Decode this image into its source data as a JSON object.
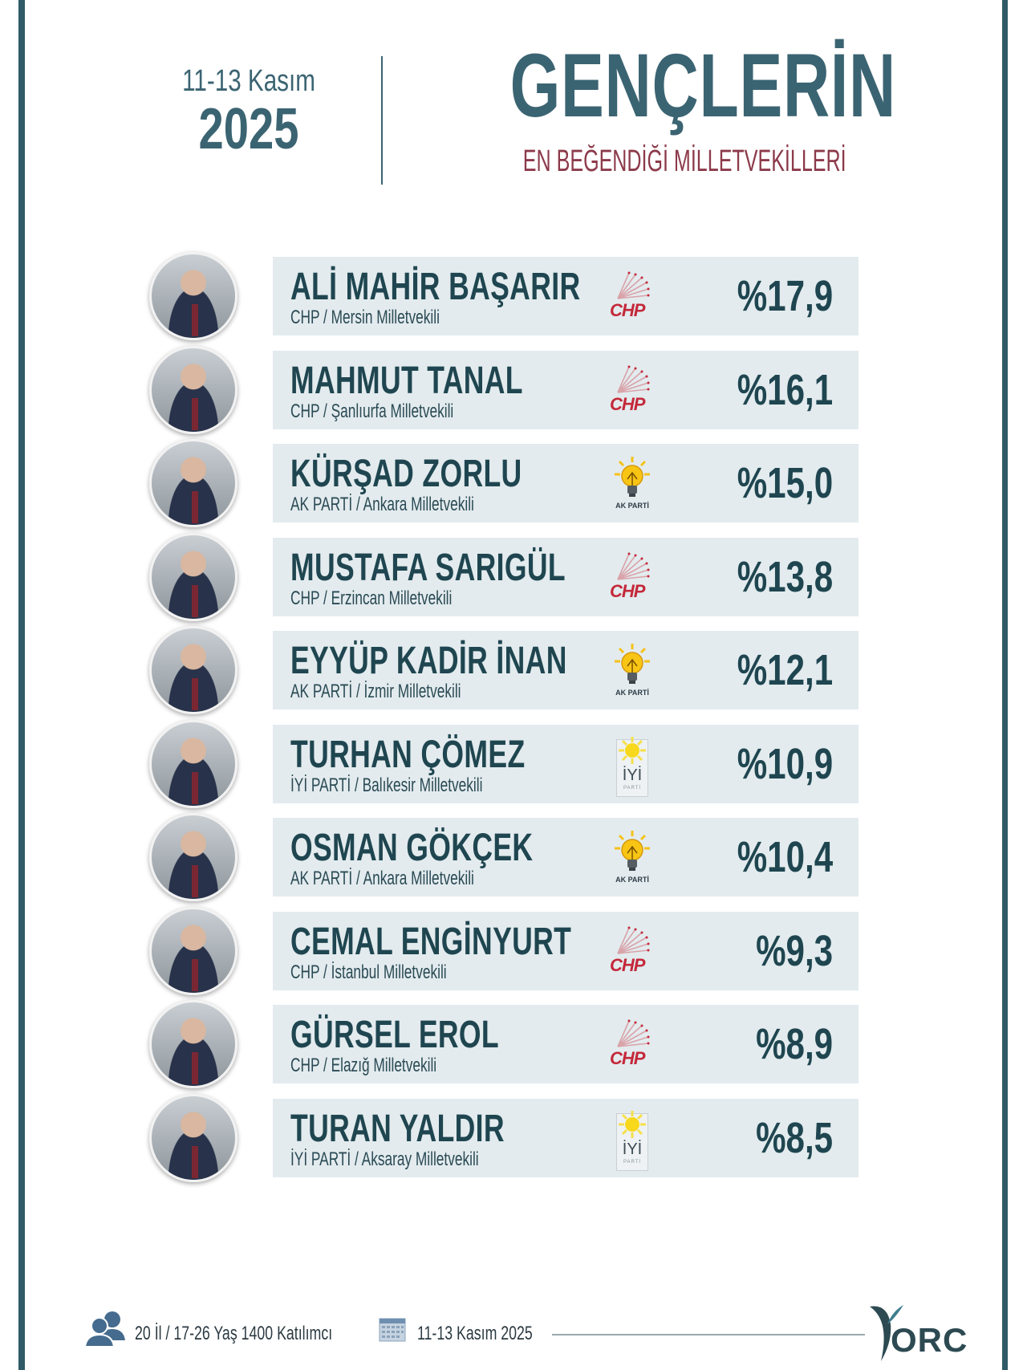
{
  "header": {
    "date_range": "11-13 Kasım",
    "year": "2025",
    "title": "GENÇLERİN",
    "subtitle": "EN BEĞENDİĞİ MİLLETVEKİLLERİ"
  },
  "colors": {
    "primary_teal": "#3b6472",
    "subtitle_maroon": "#8c3a4a",
    "bar_bg": "#e3ebee",
    "text_dark": "#1f4650",
    "chp_red": "#c4283a",
    "akp_yellow": "#f4c21a",
    "iyi_yellow": "#f8d81c"
  },
  "rows": [
    {
      "rank": 1,
      "name": "ALİ MAHİR BAŞARIR",
      "party": "CHP",
      "detail": "CHP / Mersin Milletvekili",
      "logo": "chp-logo-icon",
      "value_label": "%17,9",
      "value": 17.9
    },
    {
      "rank": 2,
      "name": "MAHMUT TANAL",
      "party": "CHP",
      "detail": "CHP / Şanlıurfa Milletvekili",
      "logo": "chp-logo-icon",
      "value_label": "%16,1",
      "value": 16.1
    },
    {
      "rank": 3,
      "name": "KÜRŞAD ZORLU",
      "party": "AK PARTİ",
      "detail": "AK PARTİ / Ankara Milletvekili",
      "logo": "akp-logo-icon",
      "value_label": "%15,0",
      "value": 15.0
    },
    {
      "rank": 4,
      "name": "MUSTAFA SARIGÜL",
      "party": "CHP",
      "detail": "CHP / Erzincan Milletvekili",
      "logo": "chp-logo-icon",
      "value_label": "%13,8",
      "value": 13.8
    },
    {
      "rank": 5,
      "name": "EYYÜP KADİR İNAN",
      "party": "AK PARTİ",
      "detail": "AK PARTİ / İzmir Milletvekili",
      "logo": "akp-logo-icon",
      "value_label": "%12,1",
      "value": 12.1
    },
    {
      "rank": 6,
      "name": "TURHAN ÇÖMEZ",
      "party": "İYİ PARTİ",
      "detail": "İYİ PARTİ / Balıkesir Milletvekili",
      "logo": "iyi-logo-icon",
      "value_label": "%10,9",
      "value": 10.9
    },
    {
      "rank": 7,
      "name": "OSMAN GÖKÇEK",
      "party": "AK PARTİ",
      "detail": "AK PARTİ / Ankara Milletvekili",
      "logo": "akp-logo-icon",
      "value_label": "%10,4",
      "value": 10.4
    },
    {
      "rank": 8,
      "name": "CEMAL ENGİNYURT",
      "party": "CHP",
      "detail": "CHP / İstanbul Milletvekili",
      "logo": "chp-logo-icon",
      "value_label": "%9,3",
      "value": 9.3
    },
    {
      "rank": 9,
      "name": "GÜRSEL EROL",
      "party": "CHP",
      "detail": "CHP / Elazığ Milletvekili",
      "logo": "chp-logo-icon",
      "value_label": "%8,9",
      "value": 8.9
    },
    {
      "rank": 10,
      "name": "TURAN YALDIR",
      "party": "İYİ PARTİ",
      "detail": "İYİ PARTİ / Aksaray Milletvekili",
      "logo": "iyi-logo-icon",
      "value_label": "%8,5",
      "value": 8.5
    }
  ],
  "logos": {
    "chp_text": "CHP",
    "akp_text": "AK PARTİ",
    "iyi_text": "İYİ",
    "iyi_sub": "PARTİ"
  },
  "footer": {
    "sample_text": "20 İl / 17-26 Yaş 1400 Katılımcı",
    "date_text": "11-13 Kasım 2025",
    "brand": "ORC"
  },
  "chart_data": {
    "type": "table",
    "title": "GENÇLERİN EN BEĞENDİĞİ MİLLETVEKİLLERİ",
    "subtitle": "11-13 Kasım 2025",
    "categories": [
      "ALİ MAHİR BAŞARIR",
      "MAHMUT TANAL",
      "KÜRŞAD ZORLU",
      "MUSTAFA SARIGÜL",
      "EYYÜP KADİR İNAN",
      "TURHAN ÇÖMEZ",
      "OSMAN GÖKÇEK",
      "CEMAL ENGİNYURT",
      "GÜRSEL EROL",
      "TURAN YALDIR"
    ],
    "parties": [
      "CHP",
      "CHP",
      "AK PARTİ",
      "CHP",
      "AK PARTİ",
      "İYİ PARTİ",
      "AK PARTİ",
      "CHP",
      "CHP",
      "İYİ PARTİ"
    ],
    "constituencies": [
      "Mersin",
      "Şanlıurfa",
      "Ankara",
      "Erzincan",
      "İzmir",
      "Balıkesir",
      "Ankara",
      "İstanbul",
      "Elazığ",
      "Aksaray"
    ],
    "values": [
      17.9,
      16.1,
      15.0,
      13.8,
      12.1,
      10.9,
      10.4,
      9.3,
      8.9,
      8.5
    ],
    "unit": "%",
    "note": "20 İl / 17-26 Yaş 1400 Katılımcı",
    "source": "ORC"
  }
}
